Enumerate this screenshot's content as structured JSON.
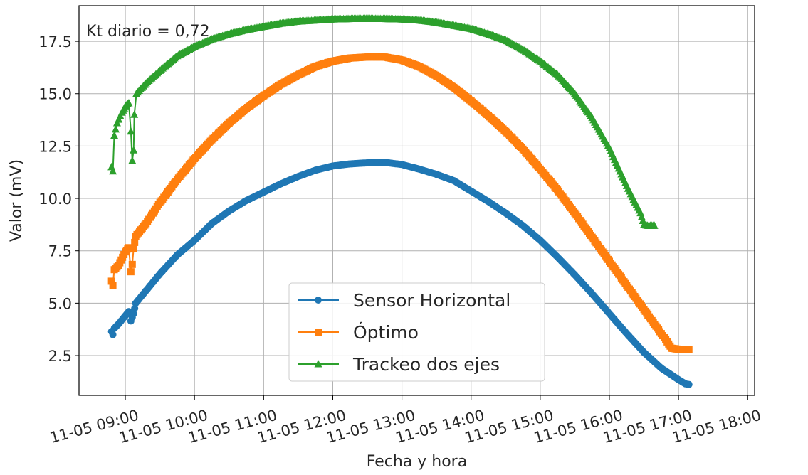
{
  "chart_data": {
    "type": "line",
    "annotation": "Kt diario = 0,72",
    "xlabel": "Fecha y hora",
    "ylabel": "Valor (mV)",
    "xlim": [
      8.33,
      18.1
    ],
    "ylim": [
      0.6,
      19.2
    ],
    "x_ticks": [
      {
        "value": 9,
        "label": "11-05 09:00"
      },
      {
        "value": 10,
        "label": "11-05 10:00"
      },
      {
        "value": 11,
        "label": "11-05 11:00"
      },
      {
        "value": 12,
        "label": "11-05 12:00"
      },
      {
        "value": 13,
        "label": "11-05 13:00"
      },
      {
        "value": 14,
        "label": "11-05 14:00"
      },
      {
        "value": 15,
        "label": "11-05 15:00"
      },
      {
        "value": 16,
        "label": "11-05 16:00"
      },
      {
        "value": 17,
        "label": "11-05 17:00"
      },
      {
        "value": 18,
        "label": "11-05 18:00"
      }
    ],
    "y_ticks": [
      {
        "value": 2.5,
        "label": "2.5"
      },
      {
        "value": 5.0,
        "label": "5.0"
      },
      {
        "value": 7.5,
        "label": "7.5"
      },
      {
        "value": 10.0,
        "label": "10.0"
      },
      {
        "value": 12.5,
        "label": "12.5"
      },
      {
        "value": 15.0,
        "label": "15.0"
      },
      {
        "value": 17.5,
        "label": "17.5"
      }
    ],
    "grid": true,
    "legend_position": "bottom-center",
    "series": [
      {
        "name": "Sensor Horizontal",
        "color": "#1f77b4",
        "marker": "circle",
        "points": [
          [
            8.8,
            3.65
          ],
          [
            8.82,
            3.5
          ],
          [
            8.84,
            3.8
          ],
          [
            8.9,
            4.0
          ],
          [
            9.0,
            4.4
          ],
          [
            9.05,
            4.6
          ],
          [
            9.08,
            4.15
          ],
          [
            9.12,
            4.5
          ],
          [
            9.15,
            5.0
          ],
          [
            9.3,
            5.6
          ],
          [
            9.5,
            6.4
          ],
          [
            9.75,
            7.3
          ],
          [
            10.0,
            8.0
          ],
          [
            10.25,
            8.8
          ],
          [
            10.5,
            9.4
          ],
          [
            10.75,
            9.9
          ],
          [
            11.0,
            10.3
          ],
          [
            11.25,
            10.7
          ],
          [
            11.5,
            11.05
          ],
          [
            11.75,
            11.35
          ],
          [
            12.0,
            11.55
          ],
          [
            12.25,
            11.65
          ],
          [
            12.5,
            11.7
          ],
          [
            12.75,
            11.72
          ],
          [
            13.0,
            11.62
          ],
          [
            13.25,
            11.4
          ],
          [
            13.5,
            11.15
          ],
          [
            13.75,
            10.85
          ],
          [
            14.0,
            10.35
          ],
          [
            14.25,
            9.85
          ],
          [
            14.5,
            9.3
          ],
          [
            14.75,
            8.7
          ],
          [
            15.0,
            8.0
          ],
          [
            15.25,
            7.2
          ],
          [
            15.5,
            6.35
          ],
          [
            15.75,
            5.45
          ],
          [
            16.0,
            4.5
          ],
          [
            16.25,
            3.55
          ],
          [
            16.5,
            2.65
          ],
          [
            16.75,
            1.9
          ],
          [
            17.0,
            1.35
          ],
          [
            17.1,
            1.15
          ],
          [
            17.15,
            1.12
          ]
        ]
      },
      {
        "name": "Óptimo",
        "color": "#ff7f0e",
        "marker": "square",
        "points": [
          [
            8.8,
            6.05
          ],
          [
            8.82,
            5.85
          ],
          [
            8.84,
            6.6
          ],
          [
            8.9,
            6.8
          ],
          [
            9.0,
            7.45
          ],
          [
            9.05,
            7.65
          ],
          [
            9.08,
            6.5
          ],
          [
            9.1,
            6.85
          ],
          [
            9.12,
            7.6
          ],
          [
            9.15,
            8.2
          ],
          [
            9.3,
            8.8
          ],
          [
            9.5,
            9.8
          ],
          [
            9.75,
            10.9
          ],
          [
            10.0,
            11.9
          ],
          [
            10.25,
            12.8
          ],
          [
            10.5,
            13.6
          ],
          [
            10.75,
            14.3
          ],
          [
            11.0,
            14.9
          ],
          [
            11.25,
            15.45
          ],
          [
            11.5,
            15.9
          ],
          [
            11.75,
            16.3
          ],
          [
            12.0,
            16.55
          ],
          [
            12.25,
            16.7
          ],
          [
            12.5,
            16.75
          ],
          [
            12.75,
            16.75
          ],
          [
            13.0,
            16.6
          ],
          [
            13.25,
            16.3
          ],
          [
            13.5,
            15.85
          ],
          [
            13.75,
            15.3
          ],
          [
            14.0,
            14.65
          ],
          [
            14.25,
            13.95
          ],
          [
            14.5,
            13.2
          ],
          [
            14.75,
            12.35
          ],
          [
            15.0,
            11.4
          ],
          [
            15.25,
            10.4
          ],
          [
            15.5,
            9.3
          ],
          [
            15.75,
            8.15
          ],
          [
            16.0,
            7.0
          ],
          [
            16.25,
            5.85
          ],
          [
            16.5,
            4.7
          ],
          [
            16.75,
            3.55
          ],
          [
            16.9,
            2.85
          ],
          [
            17.0,
            2.8
          ],
          [
            17.15,
            2.8
          ]
        ]
      },
      {
        "name": "Trackeo dos ejes",
        "color": "#2ca02c",
        "marker": "triangle",
        "points": [
          [
            8.8,
            11.5
          ],
          [
            8.82,
            11.3
          ],
          [
            8.84,
            13.0
          ],
          [
            8.88,
            13.6
          ],
          [
            8.95,
            14.1
          ],
          [
            9.0,
            14.4
          ],
          [
            9.05,
            14.55
          ],
          [
            9.08,
            13.2
          ],
          [
            9.1,
            11.8
          ],
          [
            9.12,
            12.3
          ],
          [
            9.13,
            14.0
          ],
          [
            9.16,
            15.0
          ],
          [
            9.3,
            15.5
          ],
          [
            9.5,
            16.1
          ],
          [
            9.75,
            16.8
          ],
          [
            10.0,
            17.25
          ],
          [
            10.25,
            17.6
          ],
          [
            10.5,
            17.85
          ],
          [
            10.75,
            18.05
          ],
          [
            11.0,
            18.2
          ],
          [
            11.25,
            18.35
          ],
          [
            11.5,
            18.45
          ],
          [
            11.75,
            18.5
          ],
          [
            12.0,
            18.55
          ],
          [
            12.25,
            18.57
          ],
          [
            12.5,
            18.58
          ],
          [
            12.75,
            18.57
          ],
          [
            13.0,
            18.55
          ],
          [
            13.25,
            18.5
          ],
          [
            13.5,
            18.4
          ],
          [
            13.75,
            18.25
          ],
          [
            14.0,
            18.1
          ],
          [
            14.25,
            17.85
          ],
          [
            14.5,
            17.55
          ],
          [
            14.75,
            17.1
          ],
          [
            15.0,
            16.55
          ],
          [
            15.25,
            15.9
          ],
          [
            15.5,
            15.0
          ],
          [
            15.75,
            13.85
          ],
          [
            16.0,
            12.4
          ],
          [
            16.25,
            10.6
          ],
          [
            16.45,
            9.3
          ],
          [
            16.5,
            8.75
          ],
          [
            16.55,
            8.7
          ],
          [
            16.65,
            8.7
          ]
        ]
      }
    ]
  }
}
